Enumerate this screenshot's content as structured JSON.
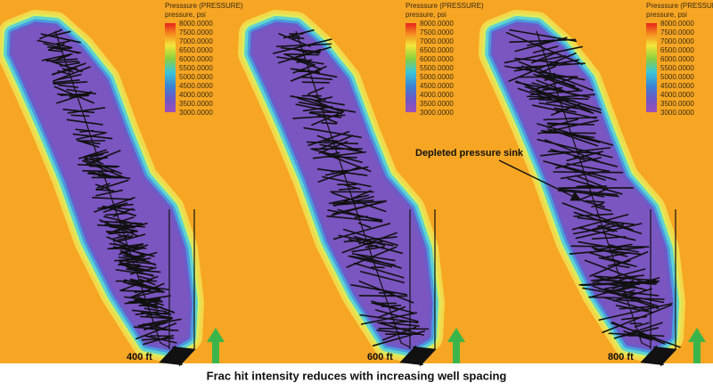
{
  "panels": [
    {
      "legend": {
        "title": "Presssure (PRESSURE)",
        "subtitle": "pressure, psi",
        "labels": [
          "8000.0000",
          "7500.0000",
          "7000.0000",
          "6500.0000",
          "6000.0000",
          "5500.0000",
          "5000.0000",
          "4500.0000",
          "4000.0000",
          "3500.0000",
          "3000.0000"
        ]
      },
      "spacing": "400 ft"
    },
    {
      "legend": {
        "title": "Presssure (PRESSURE)",
        "subtitle": "pressure, psi",
        "labels": [
          "8000.0000",
          "7500.0000",
          "7000.0000",
          "6500.0000",
          "6000.0000",
          "5500.0000",
          "5000.0000",
          "4500.0000",
          "4000.0000",
          "3500.0000",
          "3000.0000"
        ]
      },
      "spacing": "600 ft"
    },
    {
      "legend": {
        "title": "Presssure (PRESSURE)",
        "subtitle": "pressure, psi",
        "labels": [
          "8000.0000",
          "7500.0000",
          "7000.0000",
          "6500.0000",
          "6000.0000",
          "5500.0000",
          "5000.0000",
          "4500.0000",
          "4000.0000",
          "3500.0000",
          "3000.0000"
        ]
      },
      "spacing": "800 ft"
    }
  ],
  "annotation": "Depleted pressure sink",
  "caption": "Frac hit intensity reduces with increasing well spacing"
}
